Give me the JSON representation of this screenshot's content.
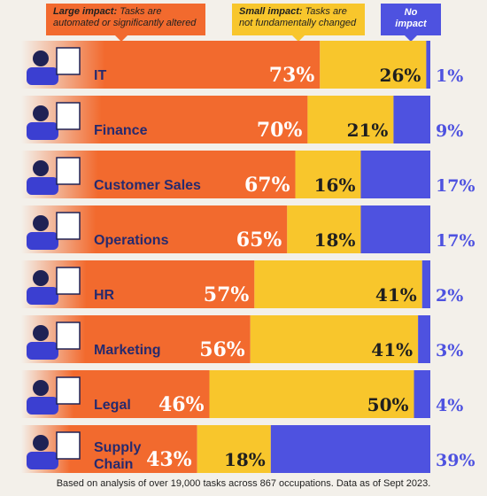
{
  "legend": {
    "large_title": "Large impact:",
    "large_desc": "Tasks are automated or significantly altered",
    "small_title": "Small impact:",
    "small_desc": "Tasks are not fundamentally changed",
    "none_title": "No impact"
  },
  "colors": {
    "large": "#f26a2e",
    "small": "#f8c62c",
    "none": "#4e52e0",
    "label": "#262a6e",
    "value_on_bar": "#ffffff",
    "value_dark": "#1f1f1f"
  },
  "chart_data": {
    "type": "bar",
    "orientation": "horizontal",
    "stacked": true,
    "categories": [
      "IT",
      "Finance",
      "Customer Sales",
      "Operations",
      "HR",
      "Marketing",
      "Legal",
      "Supply Chain"
    ],
    "series": [
      {
        "name": "Large impact",
        "values": [
          73,
          70,
          67,
          65,
          57,
          56,
          46,
          43
        ]
      },
      {
        "name": "Small impact",
        "values": [
          26,
          21,
          16,
          18,
          41,
          41,
          50,
          18
        ]
      },
      {
        "name": "No impact",
        "values": [
          1,
          9,
          17,
          17,
          2,
          3,
          4,
          39
        ]
      }
    ],
    "value_labels": {
      "large": [
        "73%",
        "70%",
        "67%",
        "65%",
        "57%",
        "56%",
        "46%",
        "43%"
      ],
      "small": [
        "26%",
        "21%",
        "16%",
        "18%",
        "41%",
        "41%",
        "50%",
        "18%"
      ],
      "none": [
        "1%",
        "9%",
        "17%",
        "17%",
        "2%",
        "3%",
        "4%",
        "39%"
      ]
    },
    "xlim": [
      0,
      100
    ]
  },
  "footnote": "Based on analysis of over 19,000 tasks across 867 occupations. Data as of Sept 2023."
}
